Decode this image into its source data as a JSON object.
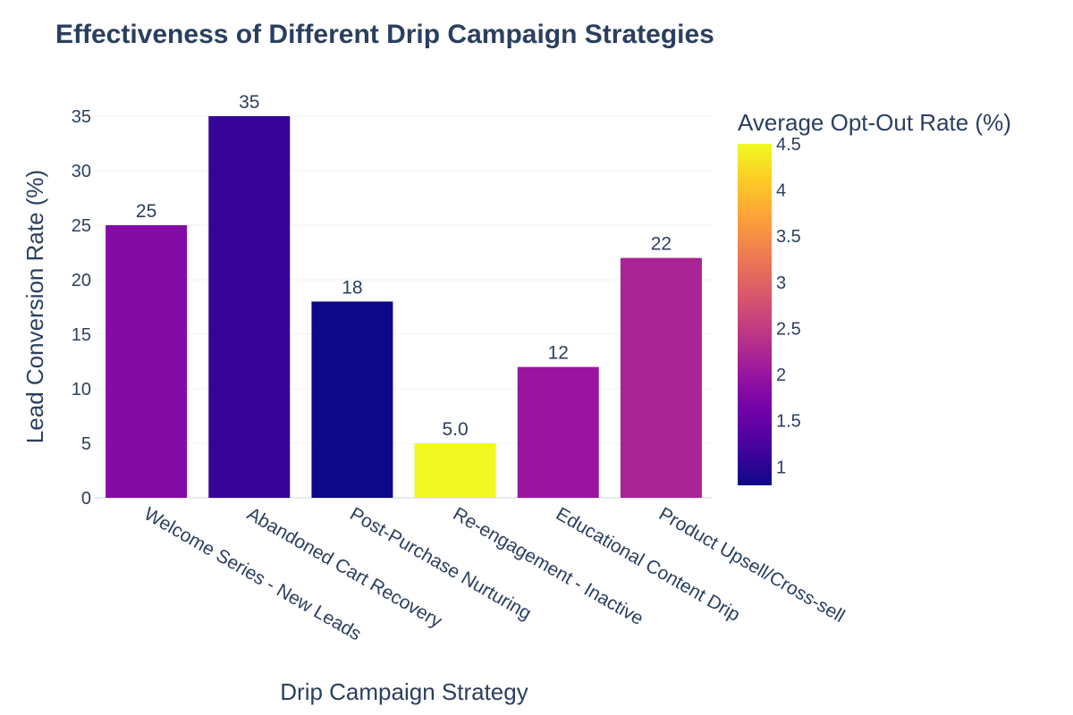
{
  "chart_data": {
    "type": "bar",
    "title": "Effectiveness of Different Drip Campaign Strategies",
    "xlabel": "Drip Campaign Strategy",
    "ylabel": "Lead Conversion Rate (%)",
    "ylim": [
      0,
      35
    ],
    "yticks": [
      0,
      5,
      10,
      15,
      20,
      25,
      30,
      35
    ],
    "categories": [
      "Welcome Series - New Leads",
      "Abandoned Cart Recovery",
      "Post-Purchase Nurturing",
      "Re-engagement - Inactive",
      "Educational Content Drip",
      "Product Upsell/Cross-sell"
    ],
    "values": [
      25,
      35,
      18,
      5.0,
      12,
      22
    ],
    "value_labels": [
      "25",
      "35",
      "18",
      "5.0",
      "12",
      "22"
    ],
    "color_values": [
      1.8,
      1.1,
      0.8,
      4.5,
      2.0,
      2.2
    ],
    "colorbar": {
      "title": "Average Opt-Out Rate (%)",
      "range": [
        0.8,
        4.5
      ],
      "ticks": [
        1,
        1.5,
        2,
        2.5,
        3,
        3.5,
        4,
        4.5
      ],
      "tick_labels": [
        "1",
        "1.5",
        "2",
        "2.5",
        "3",
        "3.5",
        "4",
        "4.5"
      ],
      "colorscale": [
        "#0d0887",
        "#46039f",
        "#7201a8",
        "#9c179e",
        "#bd3786",
        "#d8576b",
        "#ed7953",
        "#fb9f3a",
        "#fdca26",
        "#f0f921"
      ]
    },
    "grid": true,
    "legend": "colorbar-right"
  }
}
